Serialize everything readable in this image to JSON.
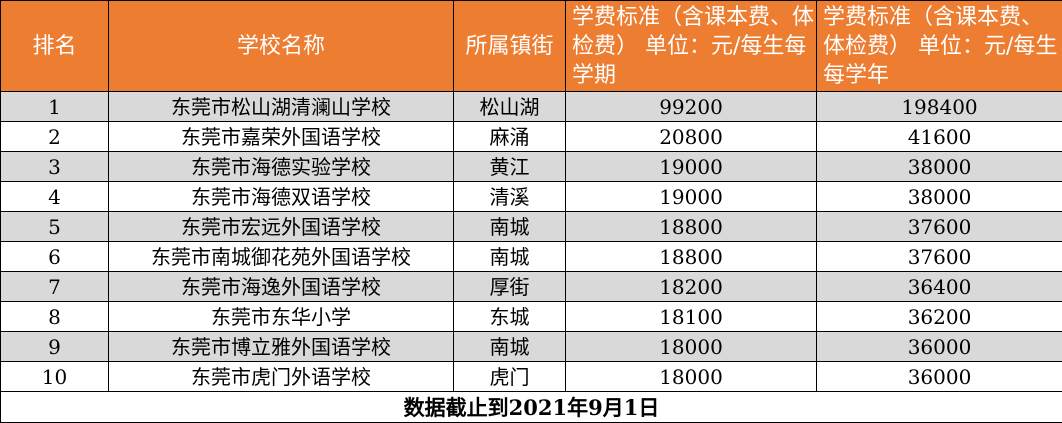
{
  "headers": {
    "rank": "排名",
    "school": "学校名称",
    "town": "所属镇街",
    "fee_term": "学费标准（含课本费、体检费） 单位：元/每生每学期",
    "fee_year": "学费标准（含课本费、体检费） 单位：元/每生每学年"
  },
  "rows": [
    {
      "rank": "1",
      "school": "东莞市松山湖清澜山学校",
      "town": "松山湖",
      "fee_term": "99200",
      "fee_year": "198400"
    },
    {
      "rank": "2",
      "school": "东莞市嘉荣外国语学校",
      "town": "麻涌",
      "fee_term": "20800",
      "fee_year": "41600"
    },
    {
      "rank": "3",
      "school": "东莞市海德实验学校",
      "town": "黄江",
      "fee_term": "19000",
      "fee_year": "38000"
    },
    {
      "rank": "4",
      "school": "东莞市海德双语学校",
      "town": "清溪",
      "fee_term": "19000",
      "fee_year": "38000"
    },
    {
      "rank": "5",
      "school": "东莞市宏远外国语学校",
      "town": "南城",
      "fee_term": "18800",
      "fee_year": "37600"
    },
    {
      "rank": "6",
      "school": "东莞市南城御花苑外国语学校",
      "town": "南城",
      "fee_term": "18800",
      "fee_year": "37600"
    },
    {
      "rank": "7",
      "school": "东莞市海逸外国语学校",
      "town": "厚街",
      "fee_term": "18200",
      "fee_year": "36400"
    },
    {
      "rank": "8",
      "school": "东莞市东华小学",
      "town": "东城",
      "fee_term": "18100",
      "fee_year": "36200"
    },
    {
      "rank": "9",
      "school": "东莞市博立雅外国语学校",
      "town": "南城",
      "fee_term": "18000",
      "fee_year": "36000"
    },
    {
      "rank": "10",
      "school": "东莞市虎门外语学校",
      "town": "虎门",
      "fee_term": "18000",
      "fee_year": "36000"
    }
  ],
  "footer": "数据截止到2021年9月1日",
  "colors": {
    "header_bg": "#ed7d31",
    "header_text": "#ffffff",
    "stripe": "#d9d9d9"
  }
}
